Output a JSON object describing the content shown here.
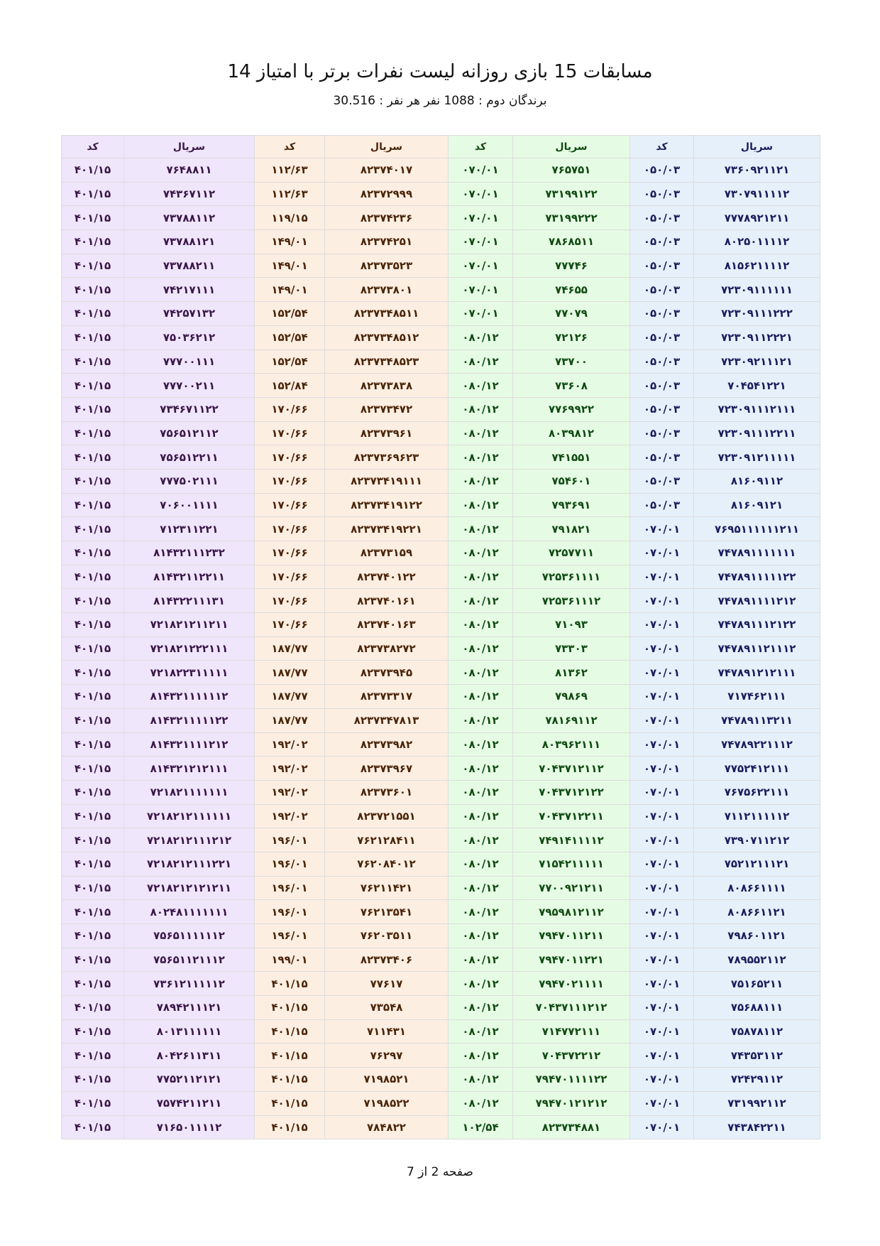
{
  "header": {
    "title": "مسابقات 15 بازی روزانه لیست نفرات برتر با امتیاز 14",
    "subtitle": "برندگان دوم : 1088 نفر هر نفر : 30.516"
  },
  "table": {
    "groups": [
      {
        "bg": "#e6f0fb",
        "fg": "#1c1c5c",
        "serial_header": "سریال",
        "code_header": "کد",
        "rows": [
          [
            "۷۳۶۰۹۲۱۱۲۱",
            "۰۵۰/۰۳"
          ],
          [
            "۷۳۰۷۹۱۱۱۱۲",
            "۰۵۰/۰۳"
          ],
          [
            "۷۷۷۸۹۲۱۲۱۱",
            "۰۵۰/۰۳"
          ],
          [
            "۸۰۲۵۰۱۱۱۱۲",
            "۰۵۰/۰۳"
          ],
          [
            "۸۱۵۶۲۱۱۱۱۲",
            "۰۵۰/۰۳"
          ],
          [
            "۷۲۳۰۹۱۱۱۱۱۱",
            "۰۵۰/۰۳"
          ],
          [
            "۷۲۳۰۹۱۱۱۲۲۲",
            "۰۵۰/۰۳"
          ],
          [
            "۷۲۳۰۹۱۱۲۲۲۱",
            "۰۵۰/۰۳"
          ],
          [
            "۷۲۳۰۹۲۱۱۱۲۱",
            "۰۵۰/۰۳"
          ],
          [
            "۷۰۴۵۴۱۲۲۱",
            "۰۵۰/۰۳"
          ],
          [
            "۷۲۳۰۹۱۱۱۲۱۱۱",
            "۰۵۰/۰۳"
          ],
          [
            "۷۲۳۰۹۱۱۱۲۲۱۱",
            "۰۵۰/۰۳"
          ],
          [
            "۷۲۳۰۹۱۲۱۱۱۱۱",
            "۰۵۰/۰۳"
          ],
          [
            "۸۱۶۰۹۱۱۲",
            "۰۵۰/۰۳"
          ],
          [
            "۸۱۶۰۹۱۲۱",
            "۰۵۰/۰۳"
          ],
          [
            "۷۶۹۵۱۱۱۱۱۱۲۱۱",
            "۰۷۰/۰۱"
          ],
          [
            "۷۴۷۸۹۱۱۱۱۱۱۱",
            "۰۷۰/۰۱"
          ],
          [
            "۷۴۷۸۹۱۱۱۱۱۲۲",
            "۰۷۰/۰۱"
          ],
          [
            "۷۴۷۸۹۱۱۱۱۲۱۲",
            "۰۷۰/۰۱"
          ],
          [
            "۷۴۷۸۹۱۱۱۲۱۲۲",
            "۰۷۰/۰۱"
          ],
          [
            "۷۴۷۸۹۱۱۲۱۱۱۲",
            "۰۷۰/۰۱"
          ],
          [
            "۷۴۷۸۹۱۲۱۲۱۱۱",
            "۰۷۰/۰۱"
          ],
          [
            "۷۱۷۴۶۲۱۱۱",
            "۰۷۰/۰۱"
          ],
          [
            "۷۴۷۸۹۱۱۳۲۱۱",
            "۰۷۰/۰۱"
          ],
          [
            "۷۴۷۸۹۲۲۱۱۱۲",
            "۰۷۰/۰۱"
          ],
          [
            "۷۷۵۲۴۱۲۱۱۱",
            "۰۷۰/۰۱"
          ],
          [
            "۷۶۷۵۶۲۲۱۱۱",
            "۰۷۰/۰۱"
          ],
          [
            "۷۱۱۲۱۱۱۱۱۲",
            "۰۷۰/۰۱"
          ],
          [
            "۷۳۹۰۷۱۱۲۱۲",
            "۰۷۰/۰۱"
          ],
          [
            "۷۵۲۱۲۱۱۱۲۱",
            "۰۷۰/۰۱"
          ],
          [
            "۸۰۸۶۶۱۱۱۱",
            "۰۷۰/۰۱"
          ],
          [
            "۸۰۸۶۶۱۱۲۱",
            "۰۷۰/۰۱"
          ],
          [
            "۷۹۸۶۰۱۱۲۱",
            "۰۷۰/۰۱"
          ],
          [
            "۷۸۹۵۵۲۱۱۲",
            "۰۷۰/۰۱"
          ],
          [
            "۷۵۱۶۵۲۱۱",
            "۰۷۰/۰۱"
          ],
          [
            "۷۵۶۸۸۱۱۱",
            "۰۷۰/۰۱"
          ],
          [
            "۷۵۸۷۸۱۱۲",
            "۰۷۰/۰۱"
          ],
          [
            "۷۴۳۵۳۱۱۲",
            "۰۷۰/۰۱"
          ],
          [
            "۷۲۴۲۹۱۱۲",
            "۰۷۰/۰۱"
          ],
          [
            "۷۳۱۹۹۲۱۱۲",
            "۰۷۰/۰۱"
          ],
          [
            "۷۴۳۸۴۲۲۱۱",
            "۰۷۰/۰۱"
          ]
        ]
      },
      {
        "bg": "#e6fbe4",
        "fg": "#0f4a12",
        "serial_header": "سریال",
        "code_header": "کد",
        "rows": [
          [
            "۷۶۵۷۵۱",
            "۰۷۰/۰۱"
          ],
          [
            "۷۳۱۹۹۱۲۲",
            "۰۷۰/۰۱"
          ],
          [
            "۷۳۱۹۹۲۲۲",
            "۰۷۰/۰۱"
          ],
          [
            "۷۸۶۸۵۱۱",
            "۰۷۰/۰۱"
          ],
          [
            "۷۷۷۴۶",
            "۰۷۰/۰۱"
          ],
          [
            "۷۴۶۵۵",
            "۰۷۰/۰۱"
          ],
          [
            "۷۷۰۷۹",
            "۰۷۰/۰۱"
          ],
          [
            "۷۲۱۲۶",
            "۰۸۰/۱۲"
          ],
          [
            "۷۳۷۰۰",
            "۰۸۰/۱۲"
          ],
          [
            "۷۳۶۰۸",
            "۰۸۰/۱۲"
          ],
          [
            "۷۷۶۹۹۲۲",
            "۰۸۰/۱۲"
          ],
          [
            "۸۰۳۹۸۱۲",
            "۰۸۰/۱۲"
          ],
          [
            "۷۴۱۵۵۱",
            "۰۸۰/۱۲"
          ],
          [
            "۷۵۴۶۰۱",
            "۰۸۰/۱۲"
          ],
          [
            "۷۹۳۶۹۱",
            "۰۸۰/۱۲"
          ],
          [
            "۷۹۱۸۲۱",
            "۰۸۰/۱۲"
          ],
          [
            "۷۲۵۷۷۱۱",
            "۰۸۰/۱۲"
          ],
          [
            "۷۲۵۳۶۱۱۱۱",
            "۰۸۰/۱۲"
          ],
          [
            "۷۲۵۳۶۱۱۱۲",
            "۰۸۰/۱۲"
          ],
          [
            "۷۱۰۹۳",
            "۰۸۰/۱۲"
          ],
          [
            "۷۳۳۰۳",
            "۰۸۰/۱۲"
          ],
          [
            "۸۱۳۶۲",
            "۰۸۰/۱۲"
          ],
          [
            "۷۹۸۶۹",
            "۰۸۰/۱۲"
          ],
          [
            "۷۸۱۶۹۱۱۲",
            "۰۸۰/۱۲"
          ],
          [
            "۸۰۳۹۶۲۱۱۱",
            "۰۸۰/۱۲"
          ],
          [
            "۷۰۴۳۷۱۲۱۱۲",
            "۰۸۰/۱۲"
          ],
          [
            "۷۰۴۳۷۱۲۱۲۲",
            "۰۸۰/۱۲"
          ],
          [
            "۷۰۴۳۷۱۲۲۱۱",
            "۰۸۰/۱۲"
          ],
          [
            "۷۴۹۱۴۱۱۱۱۲",
            "۰۸۰/۱۲"
          ],
          [
            "۷۱۵۴۲۱۱۱۱۱",
            "۰۸۰/۱۲"
          ],
          [
            "۷۷۰۰۹۲۱۲۱۱",
            "۰۸۰/۱۲"
          ],
          [
            "۷۹۵۹۸۱۲۱۱۲",
            "۰۸۰/۱۲"
          ],
          [
            "۷۹۴۷۰۱۱۲۱۱",
            "۰۸۰/۱۲"
          ],
          [
            "۷۹۴۷۰۱۱۲۲۱",
            "۰۸۰/۱۲"
          ],
          [
            "۷۹۴۷۰۲۱۱۱۱",
            "۰۸۰/۱۲"
          ],
          [
            "۷۰۴۳۷۱۱۱۲۱۲",
            "۰۸۰/۱۲"
          ],
          [
            "۷۱۴۷۷۲۱۱۱",
            "۰۸۰/۱۲"
          ],
          [
            "۷۰۴۳۷۲۲۱۲",
            "۰۸۰/۱۲"
          ],
          [
            "۷۹۴۷۰۱۱۱۱۲۲",
            "۰۸۰/۱۲"
          ],
          [
            "۷۹۴۷۰۱۲۱۲۱۲",
            "۰۸۰/۱۲"
          ],
          [
            "۸۲۳۷۳۴۸۸۱",
            "۱۰۲/۵۴"
          ]
        ]
      },
      {
        "bg": "#fdeee2",
        "fg": "#4a2408",
        "serial_header": "سریال",
        "code_header": "کد",
        "rows": [
          [
            "۸۲۳۷۴۰۱۷",
            "۱۱۲/۶۳"
          ],
          [
            "۸۲۳۷۲۹۹۹",
            "۱۱۲/۶۳"
          ],
          [
            "۸۲۳۷۴۲۳۶",
            "۱۱۹/۱۵"
          ],
          [
            "۸۲۳۷۴۲۵۱",
            "۱۴۹/۰۱"
          ],
          [
            "۸۲۳۷۳۵۲۳",
            "۱۴۹/۰۱"
          ],
          [
            "۸۲۳۷۳۸۰۱",
            "۱۴۹/۰۱"
          ],
          [
            "۸۲۳۷۳۴۸۵۱۱",
            "۱۵۲/۵۴"
          ],
          [
            "۸۲۳۷۳۴۸۵۱۲",
            "۱۵۲/۵۴"
          ],
          [
            "۸۲۳۷۳۴۸۵۲۳",
            "۱۵۲/۵۴"
          ],
          [
            "۸۲۳۷۳۸۳۸",
            "۱۵۲/۸۴"
          ],
          [
            "۸۲۳۷۳۴۷۲",
            "۱۷۰/۶۶"
          ],
          [
            "۸۲۳۷۳۹۶۱",
            "۱۷۰/۶۶"
          ],
          [
            "۸۲۳۷۳۶۹۶۲۳",
            "۱۷۰/۶۶"
          ],
          [
            "۸۲۳۷۳۴۱۹۱۱۱",
            "۱۷۰/۶۶"
          ],
          [
            "۸۲۳۷۳۴۱۹۱۲۲",
            "۱۷۰/۶۶"
          ],
          [
            "۸۲۳۷۳۴۱۹۲۲۱",
            "۱۷۰/۶۶"
          ],
          [
            "۸۲۳۷۳۱۵۹",
            "۱۷۰/۶۶"
          ],
          [
            "۸۲۳۷۴۰۱۲۲",
            "۱۷۰/۶۶"
          ],
          [
            "۸۲۳۷۴۰۱۶۱",
            "۱۷۰/۶۶"
          ],
          [
            "۸۲۳۷۴۰۱۶۳",
            "۱۷۰/۶۶"
          ],
          [
            "۸۲۳۷۳۸۲۷۲",
            "۱۸۷/۷۷"
          ],
          [
            "۸۲۳۷۳۹۴۵",
            "۱۸۷/۷۷"
          ],
          [
            "۸۲۳۷۳۳۱۷",
            "۱۸۷/۷۷"
          ],
          [
            "۸۲۳۷۳۴۷۸۱۳",
            "۱۸۷/۷۷"
          ],
          [
            "۸۲۳۷۳۹۸۲",
            "۱۹۲/۰۲"
          ],
          [
            "۸۲۳۷۳۹۶۷",
            "۱۹۲/۰۲"
          ],
          [
            "۸۲۳۷۳۶۰۱",
            "۱۹۲/۰۲"
          ],
          [
            "۸۲۳۷۲۱۵۵۱",
            "۱۹۲/۰۲"
          ],
          [
            "۷۶۲۱۲۸۴۱۱",
            "۱۹۶/۰۱"
          ],
          [
            "۷۶۲۰۸۴۰۱۲",
            "۱۹۶/۰۱"
          ],
          [
            "۷۶۲۱۱۴۲۱",
            "۱۹۶/۰۱"
          ],
          [
            "۷۶۲۱۳۵۴۱",
            "۱۹۶/۰۱"
          ],
          [
            "۷۶۲۰۳۵۱۱",
            "۱۹۶/۰۱"
          ],
          [
            "۸۲۳۷۳۴۰۶",
            "۱۹۹/۰۱"
          ],
          [
            "۷۷۶۱۷",
            "۴۰۱/۱۵"
          ],
          [
            "۷۳۵۴۸",
            "۴۰۱/۱۵"
          ],
          [
            "۷۱۱۴۳۱",
            "۴۰۱/۱۵"
          ],
          [
            "۷۶۲۹۷",
            "۴۰۱/۱۵"
          ],
          [
            "۷۱۹۸۵۲۱",
            "۴۰۱/۱۵"
          ],
          [
            "۷۱۹۸۵۲۲",
            "۴۰۱/۱۵"
          ],
          [
            "۷۸۴۸۲۲",
            "۴۰۱/۱۵"
          ]
        ]
      },
      {
        "bg": "#efe6fb",
        "fg": "#3a1648",
        "serial_header": "سریال",
        "code_header": "کد",
        "rows": [
          [
            "۷۶۴۸۸۱۱",
            "۴۰۱/۱۵"
          ],
          [
            "۷۴۳۶۷۱۱۲",
            "۴۰۱/۱۵"
          ],
          [
            "۷۳۷۸۸۱۱۲",
            "۴۰۱/۱۵"
          ],
          [
            "۷۳۷۸۸۱۲۱",
            "۴۰۱/۱۵"
          ],
          [
            "۷۳۷۸۸۲۱۱",
            "۴۰۱/۱۵"
          ],
          [
            "۷۴۲۱۷۱۱۱",
            "۴۰۱/۱۵"
          ],
          [
            "۷۴۲۵۷۱۳۲",
            "۴۰۱/۱۵"
          ],
          [
            "۷۵۰۳۶۲۱۲",
            "۴۰۱/۱۵"
          ],
          [
            "۷۷۷۰۰۱۱۱",
            "۴۰۱/۱۵"
          ],
          [
            "۷۷۷۰۰۲۱۱",
            "۴۰۱/۱۵"
          ],
          [
            "۷۳۴۶۷۱۱۲۲",
            "۴۰۱/۱۵"
          ],
          [
            "۷۵۶۵۱۲۱۱۲",
            "۴۰۱/۱۵"
          ],
          [
            "۷۵۶۵۱۲۲۱۱",
            "۴۰۱/۱۵"
          ],
          [
            "۷۷۷۵۰۲۱۱۱",
            "۴۰۱/۱۵"
          ],
          [
            "۷۰۶۰۰۱۱۱۱",
            "۴۰۱/۱۵"
          ],
          [
            "۷۱۲۳۱۱۲۲۱",
            "۴۰۱/۱۵"
          ],
          [
            "۸۱۴۳۲۱۱۱۲۳۲",
            "۴۰۱/۱۵"
          ],
          [
            "۸۱۴۳۲۱۱۲۲۱۱",
            "۴۰۱/۱۵"
          ],
          [
            "۸۱۴۳۲۲۱۱۱۳۱",
            "۴۰۱/۱۵"
          ],
          [
            "۷۲۱۸۲۱۲۱۱۲۱۱",
            "۴۰۱/۱۵"
          ],
          [
            "۷۲۱۸۲۱۲۲۲۱۱۱",
            "۴۰۱/۱۵"
          ],
          [
            "۷۲۱۸۲۲۳۱۱۱۱۱",
            "۴۰۱/۱۵"
          ],
          [
            "۸۱۴۳۲۱۱۱۱۱۱۲",
            "۴۰۱/۱۵"
          ],
          [
            "۸۱۴۳۲۱۱۱۱۱۲۲",
            "۴۰۱/۱۵"
          ],
          [
            "۸۱۴۳۲۱۱۱۱۲۱۲",
            "۴۰۱/۱۵"
          ],
          [
            "۸۱۴۳۲۱۲۱۲۱۱۱",
            "۴۰۱/۱۵"
          ],
          [
            "۷۲۱۸۲۱۱۱۱۱۱۱",
            "۴۰۱/۱۵"
          ],
          [
            "۷۲۱۸۲۱۲۱۱۱۱۱۱",
            "۴۰۱/۱۵"
          ],
          [
            "۷۲۱۸۲۱۲۱۱۱۲۱۲",
            "۴۰۱/۱۵"
          ],
          [
            "۷۲۱۸۲۱۲۱۱۱۲۲۱",
            "۴۰۱/۱۵"
          ],
          [
            "۷۲۱۸۲۱۲۱۲۱۲۱۱",
            "۴۰۱/۱۵"
          ],
          [
            "۸۰۲۴۸۱۱۱۱۱۱۱",
            "۴۰۱/۱۵"
          ],
          [
            "۷۵۶۵۱۱۱۱۱۱۲",
            "۴۰۱/۱۵"
          ],
          [
            "۷۵۶۵۱۱۲۱۱۱۲",
            "۴۰۱/۱۵"
          ],
          [
            "۷۳۶۱۲۱۱۱۱۱۲",
            "۴۰۱/۱۵"
          ],
          [
            "۷۸۹۴۲۱۱۱۲۱",
            "۴۰۱/۱۵"
          ],
          [
            "۸۰۱۳۱۱۱۱۱۱",
            "۴۰۱/۱۵"
          ],
          [
            "۸۰۴۲۶۱۱۳۱۱",
            "۴۰۱/۱۵"
          ],
          [
            "۷۷۵۲۱۱۲۱۲۱",
            "۴۰۱/۱۵"
          ],
          [
            "۷۵۷۴۲۱۱۲۱۱",
            "۴۰۱/۱۵"
          ],
          [
            "۷۱۶۵۰۱۱۱۱۲",
            "۴۰۱/۱۵"
          ]
        ]
      }
    ]
  },
  "footer": {
    "page_label": "صفحه 2 از 7"
  }
}
